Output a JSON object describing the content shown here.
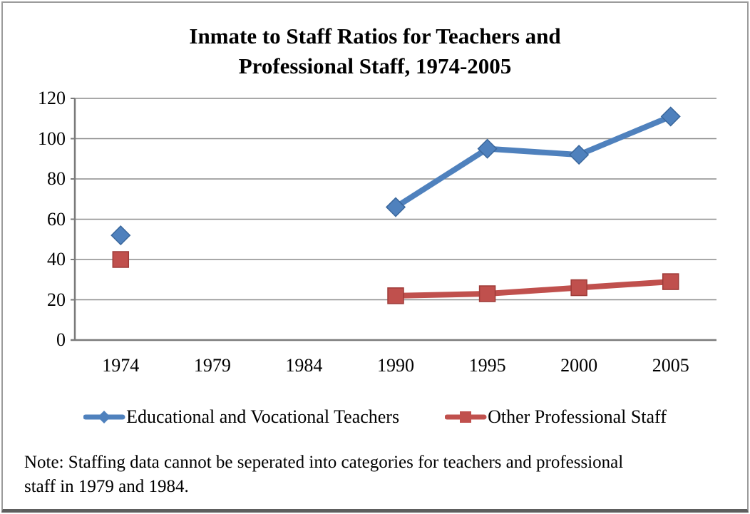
{
  "title": {
    "line1": "Inmate to Staff Ratios for Teachers and",
    "line2": "Professional Staff, 1974-2005"
  },
  "note": {
    "line1": "Note: Staffing data cannot be seperated into categories for teachers and professional",
    "line2": "staff in 1979 and 1984."
  },
  "legend": [
    {
      "label": "Educational and Vocational Teachers",
      "color": "#4F81BD",
      "marker": "diamond"
    },
    {
      "label": "Other Professional Staff",
      "color": "#C0504D",
      "marker": "square"
    }
  ],
  "chart_data": {
    "type": "line",
    "title": "Inmate to Staff Ratios for Teachers and Professional Staff, 1974-2005",
    "categories": [
      "1974",
      "1979",
      "1984",
      "1990",
      "1995",
      "2000",
      "2005"
    ],
    "series": [
      {
        "name": "Educational and Vocational Teachers",
        "color": "#4F81BD",
        "marker": "diamond",
        "marker_stroke": "#3A679C",
        "values": [
          52,
          null,
          null,
          66,
          95,
          92,
          111
        ]
      },
      {
        "name": "Other Professional Staff",
        "color": "#C0504D",
        "marker": "square",
        "marker_stroke": "#9E3B38",
        "values": [
          40,
          null,
          null,
          22,
          23,
          26,
          29
        ]
      }
    ],
    "xlabel": "",
    "ylabel": "",
    "ylim": [
      0,
      120
    ],
    "yticks": [
      0,
      20,
      40,
      60,
      80,
      100,
      120
    ],
    "grid": true,
    "legend_position": "bottom",
    "gridline_color": "#8c8c8c",
    "axis_color": "#7a7a7a",
    "note": "Note: Staffing data cannot be seperated into categories for teachers and professional staff in 1979 and 1984."
  }
}
